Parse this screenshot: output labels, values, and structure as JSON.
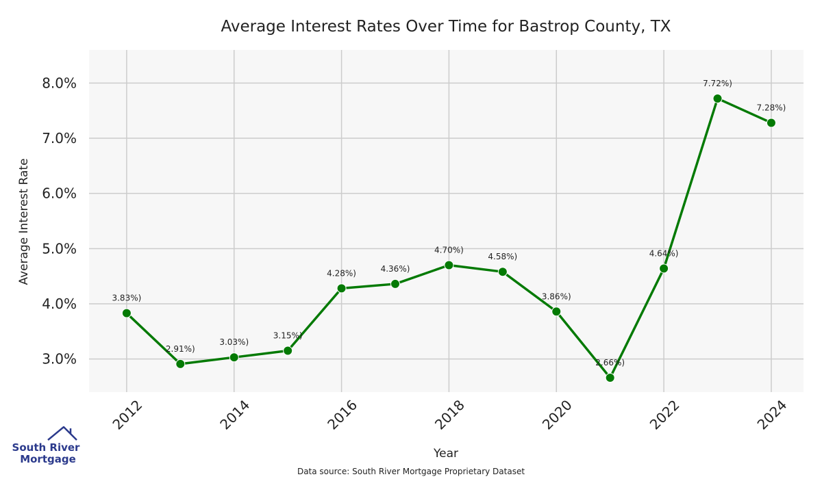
{
  "chart_data": {
    "type": "line",
    "title": "Average Interest Rates Over Time for Bastrop County, TX",
    "xlabel": "Year",
    "ylabel": "Average Interest Rate",
    "x": [
      2012,
      2013,
      2014,
      2015,
      2016,
      2017,
      2018,
      2019,
      2020,
      2021,
      2022,
      2023,
      2024
    ],
    "values": [
      3.83,
      2.91,
      3.03,
      3.15,
      4.28,
      4.36,
      4.7,
      4.58,
      3.86,
      2.66,
      4.64,
      7.72,
      7.28
    ],
    "data_labels": [
      "3.83%)",
      "2.91%)",
      "3.03%)",
      "3.15%)",
      "4.28%)",
      "4.36%)",
      "4.70%)",
      "4.58%)",
      "3.86%)",
      "2.66%)",
      "4.64%)",
      "7.72%)",
      "7.28%)"
    ],
    "xticks": [
      "2012",
      "2014",
      "2016",
      "2018",
      "2020",
      "2022",
      "2024"
    ],
    "xtick_values": [
      2012,
      2014,
      2016,
      2018,
      2020,
      2022,
      2024
    ],
    "yticks": [
      "3.0%",
      "4.0%",
      "5.0%",
      "6.0%",
      "7.0%",
      "8.0%"
    ],
    "ytick_values": [
      3,
      4,
      5,
      6,
      7,
      8
    ],
    "xlim": [
      2011.3,
      2024.6
    ],
    "ylim": [
      2.4,
      8.6
    ],
    "grid": true,
    "line_color": "#047a04",
    "plot_background": "#f7f7f7",
    "grid_color": "#cccccc"
  },
  "logo": {
    "line1": "South River",
    "line2": "Mortgage",
    "color": "#2b3a8c"
  },
  "source_note": "Data source: South River Mortgage Proprietary Dataset"
}
